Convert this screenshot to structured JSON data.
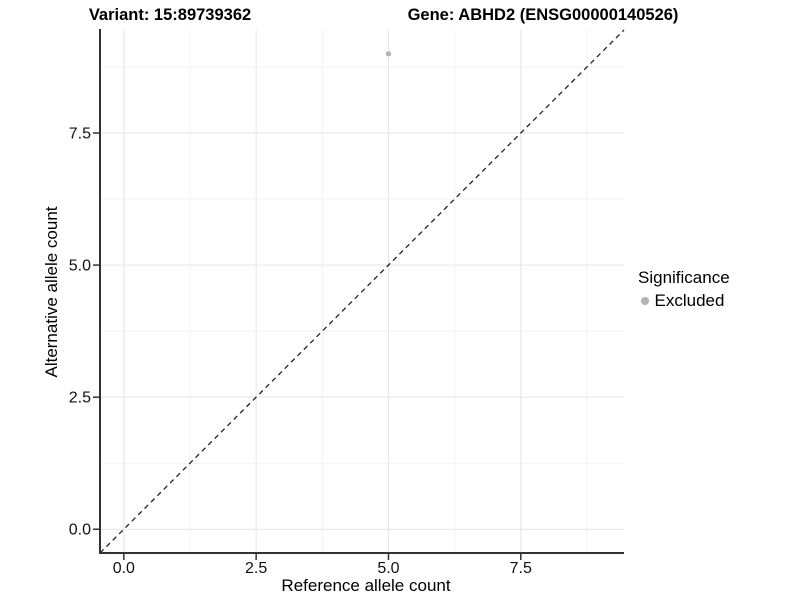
{
  "plot_title": {
    "variant": "Variant: 15:89739362",
    "gene": "Gene: ABHD2 (ENSG00000140526)"
  },
  "axes": {
    "x_title": "Reference allele count",
    "y_title": "Alternative allele count"
  },
  "legend": {
    "title": "Significance",
    "items": [
      {
        "label": "Excluded",
        "color": "#b4b4b4"
      }
    ]
  },
  "chart_data": {
    "type": "scatter",
    "title": "Variant: 15:89739362 | Gene: ABHD2 (ENSG00000140526)",
    "xlabel": "Reference allele count",
    "ylabel": "Alternative allele count",
    "xlim": [
      -0.45,
      9.45
    ],
    "ylim": [
      -0.45,
      9.45
    ],
    "x_ticks": [
      {
        "value": 0,
        "label": "0.0"
      },
      {
        "value": 2.5,
        "label": "2.5"
      },
      {
        "value": 5,
        "label": "5.0"
      },
      {
        "value": 7.5,
        "label": "7.5"
      }
    ],
    "y_ticks": [
      {
        "value": 0,
        "label": "0.0"
      },
      {
        "value": 2.5,
        "label": "2.5"
      },
      {
        "value": 5,
        "label": "5.0"
      },
      {
        "value": 7.5,
        "label": "7.5"
      }
    ],
    "minor_gridlines": [
      1.25,
      3.75,
      6.25,
      8.75
    ],
    "grid": "major+minor",
    "legend_position": "right",
    "series": [
      {
        "name": "Excluded",
        "color": "#b4b4b4",
        "points": [
          [
            5,
            9
          ]
        ]
      }
    ],
    "reference_line": {
      "kind": "identity y=x",
      "line_style": "dashed",
      "color": "#222222"
    },
    "colors": {
      "grid_major": "#e5e5e5",
      "grid_minor": "#f2f2f2",
      "axis_line": "#333333",
      "tick_text": "#111111",
      "point": "#b4b4b4"
    }
  }
}
